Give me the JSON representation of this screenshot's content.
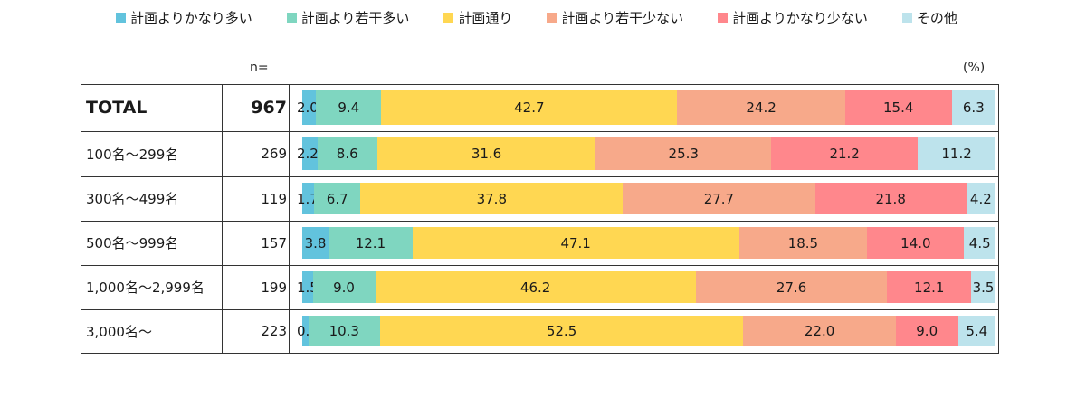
{
  "legend": [
    {
      "label": "計画よりかなり多い",
      "color": "#62c3dd"
    },
    {
      "label": "計画より若干多い",
      "color": "#7fd6c0"
    },
    {
      "label": "計画通り",
      "color": "#ffd752"
    },
    {
      "label": "計画より若干少ない",
      "color": "#f7a98a"
    },
    {
      "label": "計画よりかなり少ない",
      "color": "#ff878c"
    },
    {
      "label": "その他",
      "color": "#bde3ec"
    }
  ],
  "headers": {
    "n": "n=",
    "percent": "(%)"
  },
  "chart_data": {
    "type": "bar",
    "orientation": "horizontal",
    "stacked": true,
    "percent": true,
    "categories": [
      "TOTAL",
      "100名～299名",
      "300名～499名",
      "500名～999名",
      "1,000名～2,999名",
      "3,000名～"
    ],
    "n": [
      "967",
      "269",
      "119",
      "157",
      "199",
      "223"
    ],
    "series": [
      {
        "name": "計画よりかなり多い",
        "values": [
          2.0,
          2.2,
          1.7,
          3.8,
          1.5,
          0.9
        ]
      },
      {
        "name": "計画より若干多い",
        "values": [
          9.4,
          8.6,
          6.7,
          12.1,
          9.0,
          10.3
        ]
      },
      {
        "name": "計画通り",
        "values": [
          42.7,
          31.6,
          37.8,
          47.1,
          46.2,
          52.5
        ]
      },
      {
        "name": "計画より若干少ない",
        "values": [
          24.2,
          25.3,
          27.7,
          18.5,
          27.6,
          22.0
        ]
      },
      {
        "name": "計画よりかなり少ない",
        "values": [
          15.4,
          21.2,
          21.8,
          14.0,
          12.1,
          9.0
        ]
      },
      {
        "name": "その他",
        "values": [
          6.3,
          11.2,
          4.2,
          4.5,
          3.5,
          5.4
        ]
      }
    ],
    "value_labels": [
      [
        "2.0",
        "9.4",
        "42.7",
        "24.2",
        "15.4",
        "6.3"
      ],
      [
        "2.2",
        "8.6",
        "31.6",
        "25.3",
        "21.2",
        "11.2"
      ],
      [
        "1.7",
        "6.7",
        "37.8",
        "27.7",
        "21.8",
        "4.2"
      ],
      [
        "3.8",
        "12.1",
        "47.1",
        "18.5",
        "14.0",
        "4.5"
      ],
      [
        "1.5",
        "9.0",
        "46.2",
        "27.6",
        "12.1",
        "3.5"
      ],
      [
        "0.9",
        "10.3",
        "52.5",
        "22.0",
        "9.0",
        "5.4"
      ]
    ],
    "legend_position": "top",
    "grid": false
  }
}
